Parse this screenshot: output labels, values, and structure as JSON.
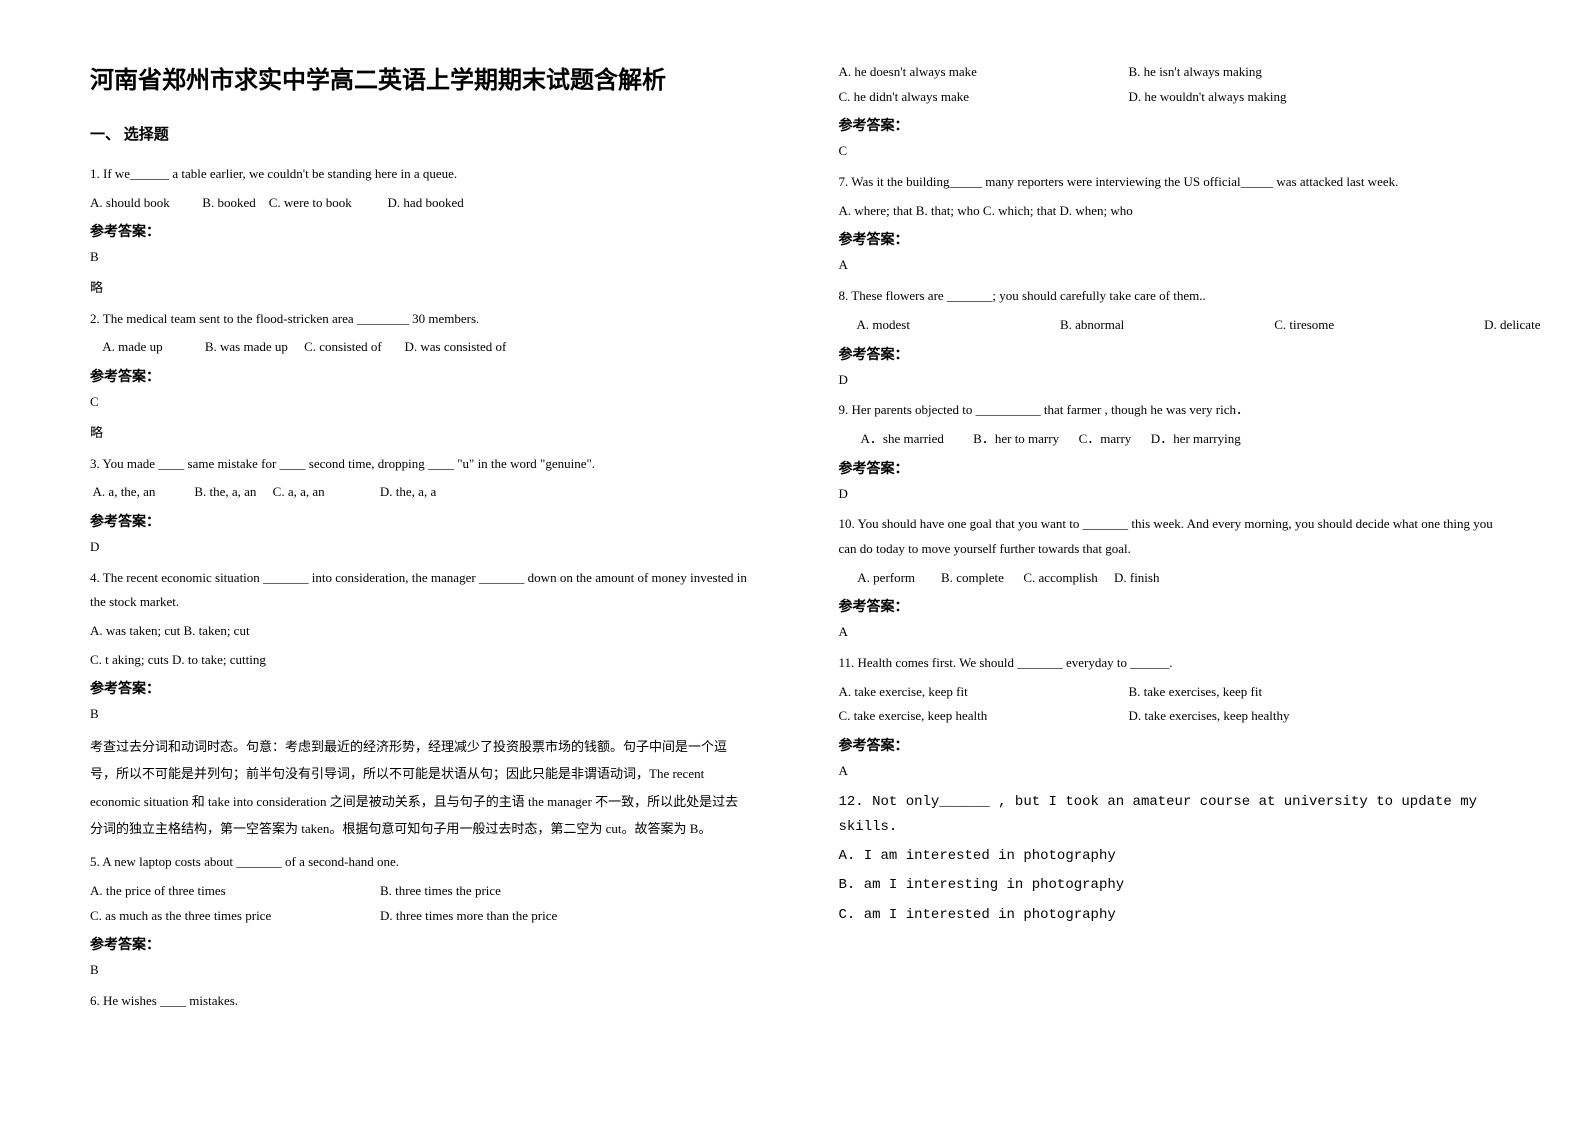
{
  "title": "河南省郑州市求实中学高二英语上学期期末试题含解析",
  "section1": "一、 选择题",
  "ansLabel": "参考答案：",
  "left": {
    "q1": "1. If we______ a table earlier, we couldn't be standing here in a queue.",
    "q1opts": "A. should book          B. booked    C. were to book           D. had booked",
    "q1ans": "B",
    "q1note": "略",
    "q2": "2. The medical team sent to the flood-stricken area ________ 30 members.",
    "q2opts": "    A. made up             B. was made up     C. consisted of       D. was consisted of",
    "q2ans": "C",
    "q2note": "略",
    "q3": "3. You made ____ same mistake for ____ second time, dropping ____ \"u\" in the word \"genuine\".",
    "q3opts": " A. a, the, an            B. the, a, an     C. a, a, an                 D. the, a, a",
    "q3ans": "D",
    "q4": "4. The recent economic situation _______ into consideration, the manager _______ down on the amount of money invested in the stock market.",
    "q4optsA": "A. was taken; cut    B. taken; cut",
    "q4optsB": "C. t aking; cuts   D. to take; cutting",
    "q4ans": "B",
    "q4explain": "考查过去分词和动词时态。句意：考虑到最近的经济形势，经理减少了投资股票市场的钱额。句子中间是一个逗号，所以不可能是并列句；前半句没有引导词，所以不可能是状语从句；因此只能是非谓语动词，The recent economic situation 和 take into consideration 之间是被动关系，且与句子的主语 the manager 不一致，所以此处是过去分词的独立主格结构，第一空答案为 taken。根据句意可知句子用一般过去时态，第二空为 cut。故答案为 B。",
    "q5": "5. A new laptop costs about _______ of a second-hand one.",
    "q5a": "A. the price of three times",
    "q5b": "B. three times the price",
    "q5c": "C. as much as the three times price",
    "q5d": "D. three times more than the price",
    "q5ans": "B",
    "q6": "6. He wishes ____ mistakes."
  },
  "right": {
    "q6a": "A. he doesn't always make",
    "q6b": "B. he isn't always making",
    "q6c": "C. he didn't always make",
    "q6d": "D. he wouldn't always making",
    "q6ans": "C",
    "q7": "7. Was it the building_____ many reporters were interviewing the US official_____ was attacked last week.",
    "q7opts": "A. where; that   B. that; who   C. which; that   D. when; who",
    "q7ans": "A",
    "q8": "8. These flowers are _______; you should carefully take care of them..",
    "q8a": "A. modest",
    "q8b": "B. abnormal",
    "q8c": "C. tiresome",
    "q8d": "D. delicate",
    "q8ans": "D",
    "q9": "9. Her parents objected to __________ that farmer , though he was very rich．",
    "q9opts": "       A．she married         B．her to marry      C．marry      D．her marrying",
    "q9ans": "D",
    "q10": "10. You should have one goal that you want to _______ this week. And every morning, you should decide what one thing you can do today to move yourself further towards that goal.",
    "q10opts": "      A. perform        B. complete      C. accomplish     D. finish",
    "q10ans": "A",
    "q11": "11. Health comes first. We should _______ everyday to ______.",
    "q11a": "A. take exercise, keep fit",
    "q11b": "B. take exercises, keep fit",
    "q11c": "C. take exercise, keep health",
    "q11d": "D. take exercises, keep healthy",
    "q11ans": "A",
    "q12": "  12. Not only______ , but I took an amateur course at university to update my skills.",
    "q12a": "  A. I am interested in photography",
    "q12b": "  B. am I interesting in photography",
    "q12c": "  C. am I interested in photography"
  }
}
